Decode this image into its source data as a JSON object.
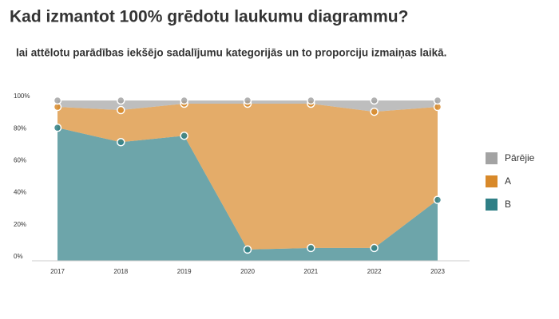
{
  "chart_data": {
    "type": "stacked_area_100",
    "title": "Kad izmantot 100% grēdotu laukumu diagrammu?",
    "subtitle": "lai attēlotu parādības iekšējo sadalījumu kategorijās un to proporciju izmaiņas laikā.",
    "categories": [
      "2017",
      "2018",
      "2019",
      "2020",
      "2021",
      "2022",
      "2023"
    ],
    "series": [
      {
        "name": "B",
        "color": "#2f7f86",
        "values": [
          83,
          74,
          78,
          7,
          8,
          8,
          38
        ]
      },
      {
        "name": "A",
        "color": "#d8892a",
        "values": [
          13,
          20,
          20,
          91,
          90,
          85,
          58
        ]
      },
      {
        "name": "Pārējie",
        "color": "#a3a3a3",
        "values": [
          4,
          6,
          2,
          2,
          2,
          7,
          4
        ]
      }
    ],
    "ylim": [
      0,
      100
    ],
    "yticks": [
      {
        "value": 0,
        "label": "0%"
      },
      {
        "value": 20,
        "label": "20%"
      },
      {
        "value": 40,
        "label": "40%"
      },
      {
        "value": 60,
        "label": "60%"
      },
      {
        "value": 80,
        "label": "80%"
      },
      {
        "value": 100,
        "label": "100%"
      }
    ],
    "legend": "right",
    "grid": false
  }
}
